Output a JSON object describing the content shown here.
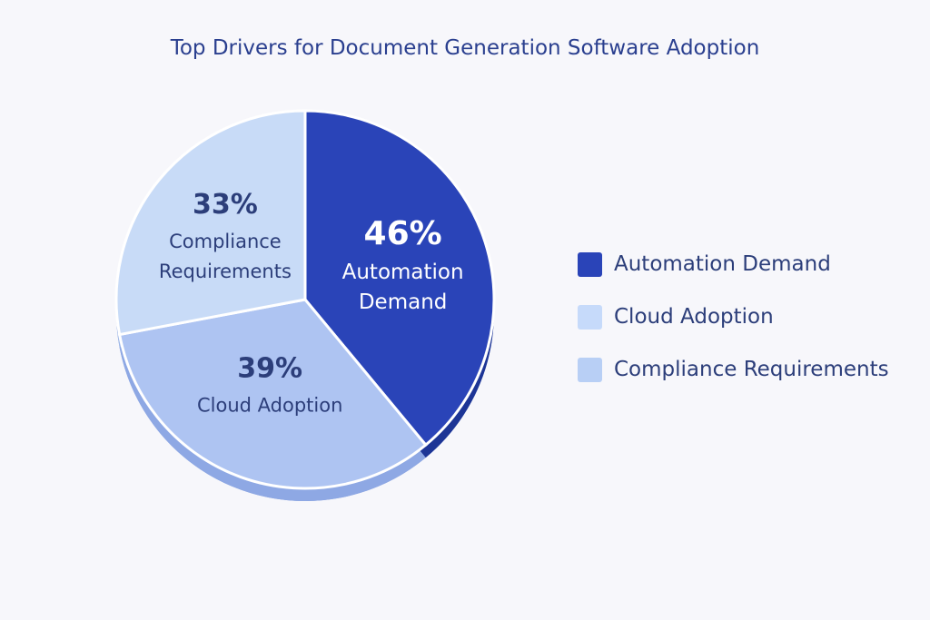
{
  "chart_data": {
    "type": "pie",
    "title": "Top Drivers for Document Generation Software Adoption",
    "slices": [
      {
        "label": "Automation Demand",
        "value": 46,
        "value_label": "46%",
        "color": "#2a44b8",
        "legend_color": "#2a44b8",
        "text_color": "#ffffff"
      },
      {
        "label": "Cloud Adoption",
        "value": 39,
        "value_label": "39%",
        "color": "#aec4f2",
        "legend_color": "#c6dafa",
        "text_color": "#2c3e7a"
      },
      {
        "label": "Compliance Requirements",
        "value": 33,
        "value_label": "33%",
        "color": "#c8dbf7",
        "legend_color": "#b8cff5",
        "text_color": "#2c3e7a"
      }
    ],
    "legend_position": "right"
  }
}
